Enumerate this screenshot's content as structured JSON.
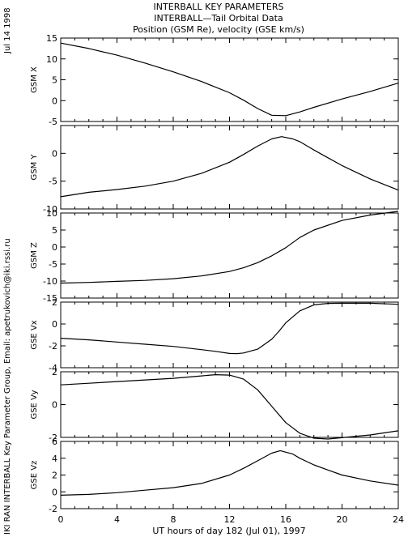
{
  "header": {
    "title": "INTERBALL KEY PARAMETERS",
    "subtitle": "INTERBALL—Tail Orbital Data",
    "subtitle2": "Position (GSM Re), velocity (GSE km/s)"
  },
  "side": {
    "date": "Jul 14 1998",
    "credit": "IKI RAN INTERBALL Key Parameter Group, Email: apetrukovich@iki.rssi.ru"
  },
  "chart_data": [
    {
      "type": "line",
      "ylabel": "GSM X",
      "ylim": [
        -5,
        15
      ],
      "yticks": [
        -5,
        0,
        5,
        10,
        15
      ],
      "x": [
        0,
        2,
        4,
        6,
        8,
        10,
        12,
        13,
        14,
        15,
        16,
        17,
        18,
        20,
        22,
        24
      ],
      "y": [
        13.8,
        12.5,
        10.9,
        9.0,
        6.9,
        4.6,
        1.9,
        0.1,
        -1.9,
        -3.5,
        -3.6,
        -2.7,
        -1.6,
        0.4,
        2.2,
        4.2
      ]
    },
    {
      "type": "line",
      "ylabel": "GSM Y",
      "ylim": [
        -10,
        5
      ],
      "yticks": [
        -10,
        -5,
        0
      ],
      "x": [
        0,
        2,
        4,
        6,
        8,
        10,
        12,
        13,
        14,
        15,
        15.7,
        16.5,
        17,
        18,
        19,
        20,
        22,
        24
      ],
      "y": [
        -7.8,
        -7.0,
        -6.5,
        -5.9,
        -5.0,
        -3.6,
        -1.6,
        -0.2,
        1.3,
        2.6,
        3.0,
        2.6,
        2.1,
        0.6,
        -0.8,
        -2.2,
        -4.6,
        -6.6
      ]
    },
    {
      "type": "line",
      "ylabel": "GSM Z",
      "ylim": [
        -15,
        10
      ],
      "yticks": [
        -15,
        -10,
        -5,
        0,
        5,
        10
      ],
      "x": [
        0,
        2,
        4,
        6,
        8,
        10,
        12,
        13,
        14,
        15,
        16,
        17,
        18,
        20,
        22,
        24
      ],
      "y": [
        -10.6,
        -10.4,
        -10.1,
        -9.8,
        -9.3,
        -8.5,
        -7.2,
        -6.1,
        -4.6,
        -2.6,
        -0.2,
        2.8,
        5.0,
        7.8,
        9.4,
        10.5
      ]
    },
    {
      "type": "line",
      "ylabel": "GSE Vx",
      "ylim": [
        -4,
        2
      ],
      "yticks": [
        -4,
        -2,
        0,
        2
      ],
      "x": [
        0,
        2,
        4,
        6,
        8,
        10,
        11,
        12,
        12.5,
        13,
        14,
        15,
        15.5,
        16,
        17,
        18,
        19,
        20,
        22,
        24
      ],
      "y": [
        -1.3,
        -1.45,
        -1.65,
        -1.85,
        -2.05,
        -2.35,
        -2.5,
        -2.7,
        -2.72,
        -2.65,
        -2.3,
        -1.4,
        -0.7,
        0.1,
        1.2,
        1.75,
        1.88,
        1.9,
        1.9,
        1.8
      ]
    },
    {
      "type": "line",
      "ylabel": "GSE Vy",
      "ylim": [
        -2,
        2
      ],
      "yticks": [
        -2,
        0,
        2
      ],
      "x": [
        0,
        2,
        4,
        6,
        8,
        10,
        11,
        12,
        13,
        14,
        15,
        16,
        17,
        18,
        19,
        20,
        22,
        24
      ],
      "y": [
        1.2,
        1.3,
        1.4,
        1.5,
        1.6,
        1.75,
        1.82,
        1.8,
        1.55,
        0.9,
        -0.1,
        -1.1,
        -1.75,
        -2.05,
        -2.1,
        -2.02,
        -1.85,
        -1.6
      ]
    },
    {
      "type": "line",
      "ylabel": "GSE Vz",
      "ylim": [
        -2,
        6
      ],
      "yticks": [
        -2,
        0,
        2,
        4,
        6
      ],
      "x": [
        0,
        2,
        4,
        6,
        8,
        10,
        12,
        13,
        14,
        15,
        15.6,
        16.5,
        17,
        18,
        19,
        20,
        22,
        24
      ],
      "y": [
        -0.4,
        -0.3,
        -0.1,
        0.2,
        0.5,
        1.0,
        2.0,
        2.8,
        3.7,
        4.6,
        4.9,
        4.5,
        4.0,
        3.2,
        2.6,
        2.0,
        1.3,
        0.8
      ]
    }
  ],
  "xaxis": {
    "label": "UT hours of day 182 (Jul 01), 1997",
    "xlim": [
      0,
      24
    ],
    "ticks": [
      0,
      4,
      8,
      12,
      16,
      20,
      24
    ],
    "tick_labels": [
      "0",
      "4",
      "8",
      "12",
      "16",
      "20",
      "24"
    ]
  }
}
